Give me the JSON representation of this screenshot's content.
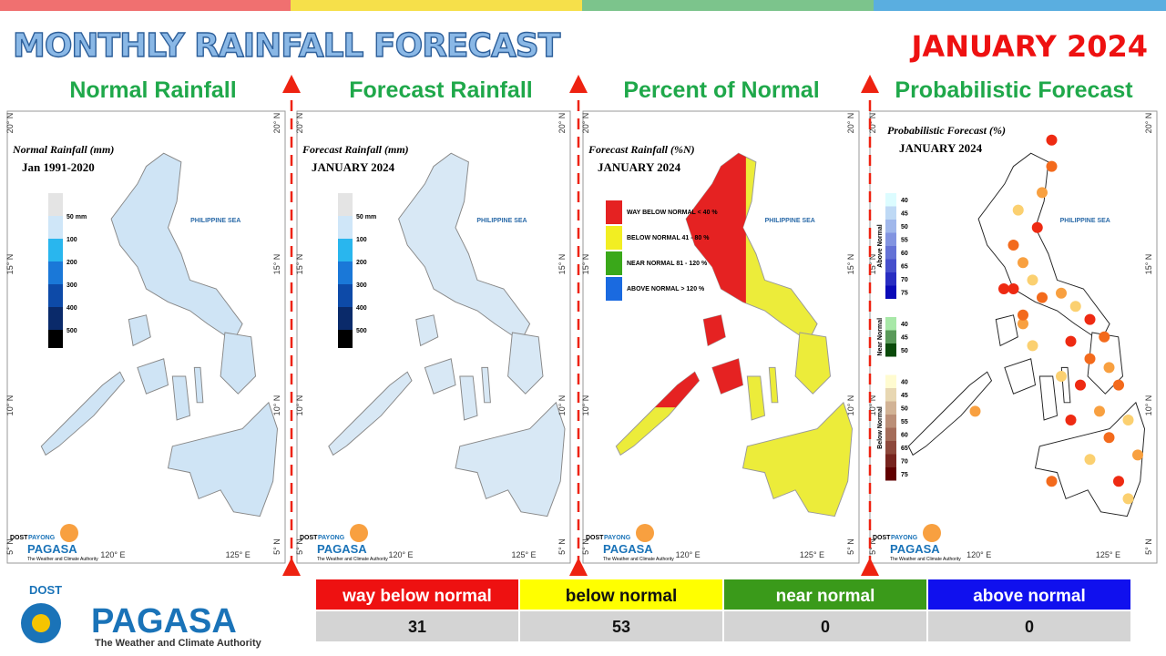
{
  "header": {
    "title": "MONTHLY RAINFALL FORECAST",
    "date": "JANUARY 2024"
  },
  "panels": [
    {
      "title": "Normal Rainfall",
      "map_title": "Normal Rainfall (mm)",
      "map_subtitle": "Jan 1991-2020",
      "legend": [
        "50 mm",
        "100",
        "200",
        "300",
        "400",
        "500"
      ],
      "sea_label": "PHILIPPINE SEA"
    },
    {
      "title": "Forecast Rainfall",
      "map_title": "Forecast Rainfall (mm)",
      "map_subtitle": "JANUARY 2024",
      "legend": [
        "50 mm",
        "100",
        "200",
        "300",
        "400",
        "500"
      ],
      "sea_label": "PHILIPPINE SEA"
    },
    {
      "title": "Percent of Normal",
      "map_title": "Forecast Rainfall (%N)",
      "map_subtitle": "JANUARY 2024",
      "legend": [
        "WAY BELOW NORMAL < 40 %",
        "BELOW NORMAL 41 - 80 %",
        "NEAR NORMAL 81 - 120 %",
        "ABOVE NORMAL > 120 %"
      ],
      "sea_label": "PHILIPPINE SEA"
    },
    {
      "title": "Probabilistic Forecast",
      "map_title": "Probabilistic Forecast (%)",
      "map_subtitle": "JANUARY 2024",
      "legend_groups": [
        {
          "name": "Above Normal",
          "labels": [
            "40",
            "45",
            "50",
            "55",
            "60",
            "65",
            "70",
            "75"
          ]
        },
        {
          "name": "Near Normal",
          "labels": [
            "40",
            "45",
            "50"
          ]
        },
        {
          "name": "Below Normal",
          "labels": [
            "40",
            "45",
            "50",
            "55",
            "60",
            "65",
            "70",
            "75"
          ]
        }
      ],
      "sea_label": "PHILIPPINE SEA"
    }
  ],
  "coordinates": {
    "lat": [
      "20° N",
      "15° N",
      "10° N",
      "5° N"
    ],
    "lon": [
      "120° E",
      "125° E"
    ]
  },
  "small_logo": {
    "top": "PAYONG",
    "name": "PAGASA",
    "tagline": "The Weather and Climate Authority",
    "agency": "DOST"
  },
  "table": {
    "headers": [
      "way below normal",
      "below normal",
      "near normal",
      "above normal"
    ],
    "values": [
      "31",
      "53",
      "0",
      "0"
    ]
  },
  "logo": {
    "agency": "DOST",
    "name": "PAGASA",
    "tagline": "The Weather and Climate Authority"
  }
}
